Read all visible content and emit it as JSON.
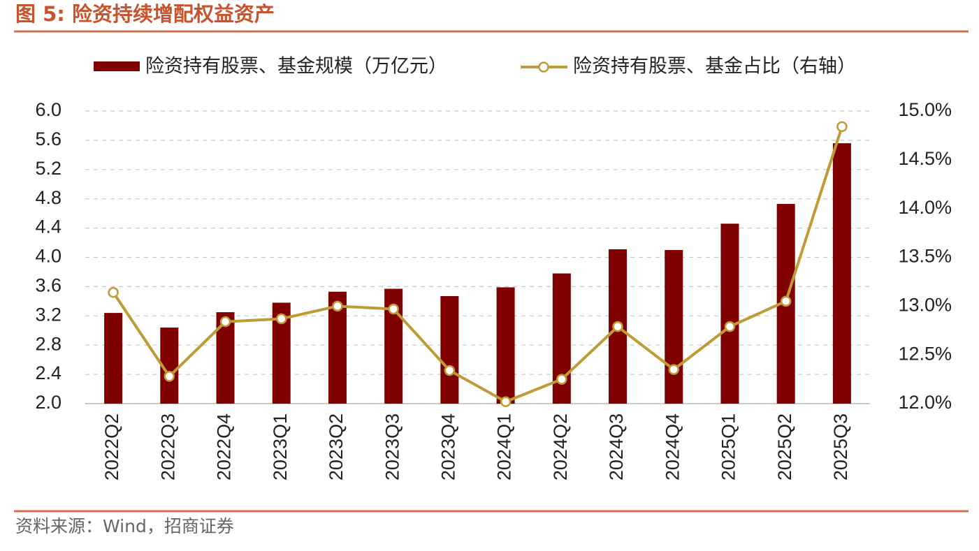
{
  "chart_data": {
    "type": "bar_line",
    "title": "图 5:  险资持续增配权益资产",
    "source": "资料来源：Wind，招商证券",
    "categories": [
      "2022Q2",
      "2022Q3",
      "2022Q4",
      "2023Q1",
      "2023Q2",
      "2023Q3",
      "2023Q4",
      "2024Q1",
      "2024Q2",
      "2024Q3",
      "2024Q4",
      "2025Q1",
      "2025Q2",
      "2025Q3"
    ],
    "series": [
      {
        "name": "险资持有股票、基金规模（万亿元）",
        "color": "#800000",
        "type": "bar",
        "values": [
          3.24,
          3.04,
          3.25,
          3.38,
          3.53,
          3.57,
          3.47,
          3.59,
          3.78,
          4.11,
          4.1,
          4.46,
          4.73,
          5.56
        ]
      },
      {
        "name": "险资持有股票、基金占比（右轴）",
        "color": "#bf9b36",
        "type": "line",
        "axis": "y2",
        "values": [
          13.14,
          12.28,
          12.84,
          12.87,
          13.0,
          12.97,
          12.34,
          12.02,
          12.25,
          12.79,
          12.35,
          12.79,
          13.05,
          14.84
        ]
      }
    ],
    "ylim": [
      2.0,
      6.0
    ],
    "yticks": [
      {
        "value": 2.0,
        "label": "2.0"
      },
      {
        "value": 2.4,
        "label": "2.4"
      },
      {
        "value": 2.8,
        "label": "2.8"
      },
      {
        "value": 3.2,
        "label": "3.2"
      },
      {
        "value": 3.6,
        "label": "3.6"
      },
      {
        "value": 4.0,
        "label": "4.0"
      },
      {
        "value": 4.4,
        "label": "4.4"
      },
      {
        "value": 4.8,
        "label": "4.8"
      },
      {
        "value": 5.2,
        "label": "5.2"
      },
      {
        "value": 5.6,
        "label": "5.6"
      },
      {
        "value": 6.0,
        "label": "6.0"
      }
    ],
    "y2lim": [
      12.0,
      15.0
    ],
    "y2ticks": [
      {
        "value": 12.0,
        "label": "12.0%"
      },
      {
        "value": 12.5,
        "label": "12.5%"
      },
      {
        "value": 13.0,
        "label": "13.0%"
      },
      {
        "value": 13.5,
        "label": "13.5%"
      },
      {
        "value": 14.0,
        "label": "14.0%"
      },
      {
        "value": 14.5,
        "label": "14.5%"
      },
      {
        "value": 15.0,
        "label": "15.0%"
      }
    ],
    "grid": true
  }
}
